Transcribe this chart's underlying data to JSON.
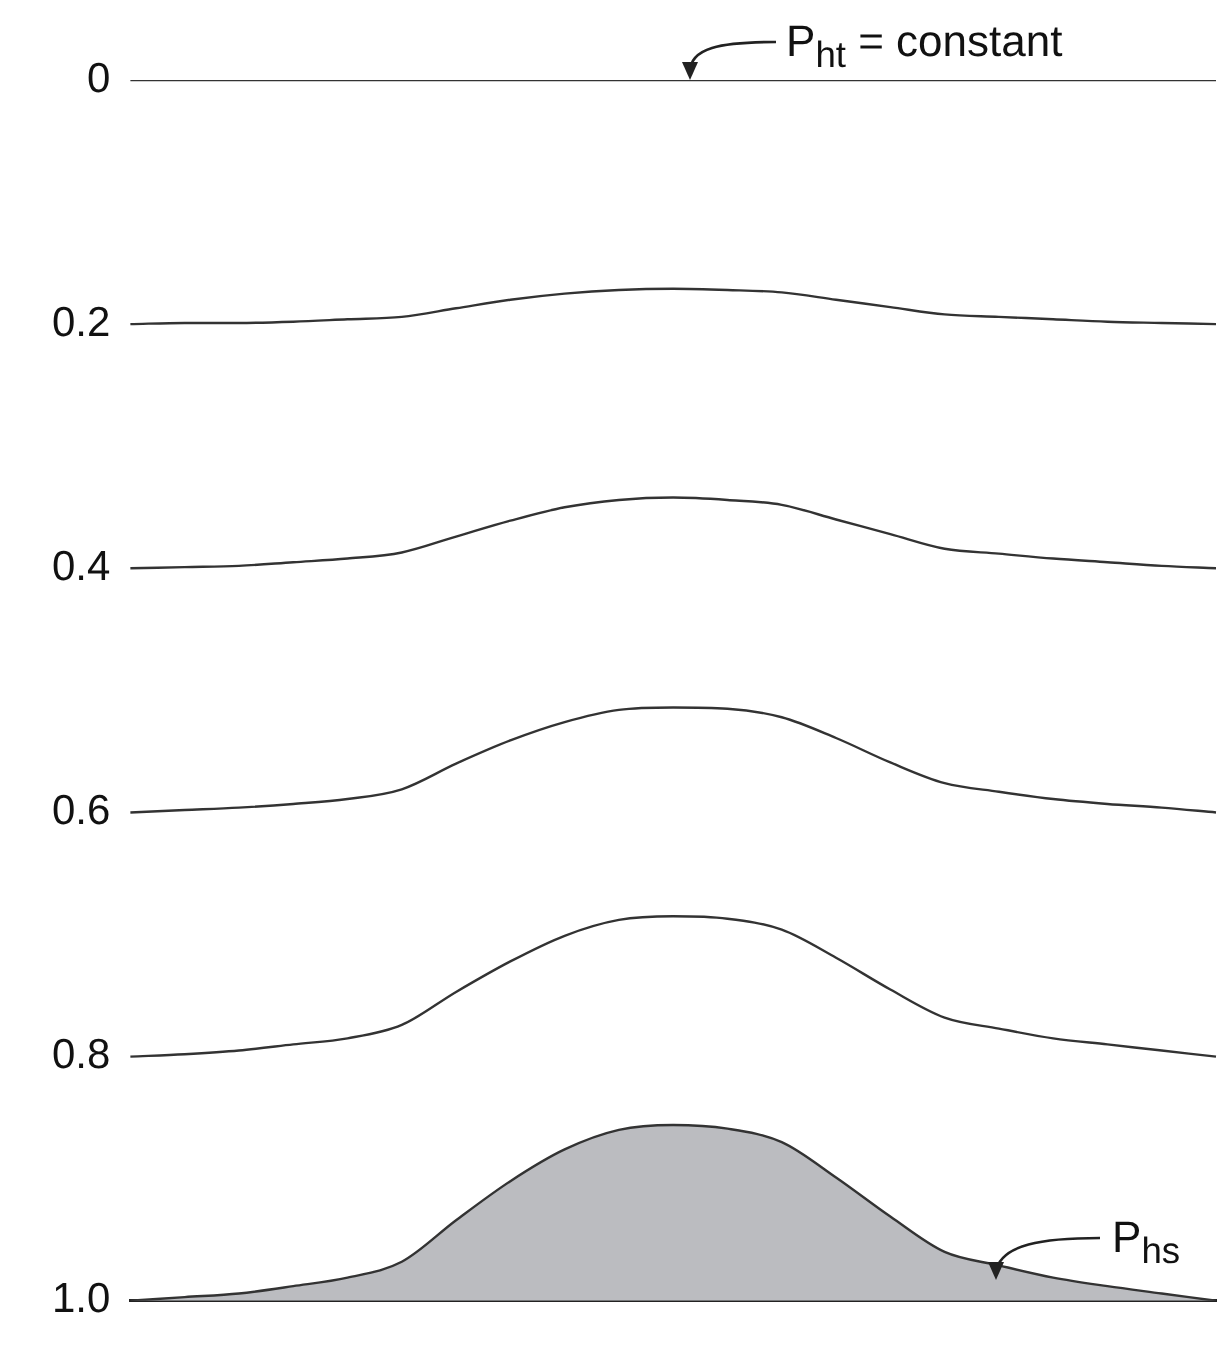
{
  "chart_data": {
    "type": "line",
    "categories": [
      null,
      null,
      null,
      null,
      null,
      null,
      null,
      null,
      null,
      null,
      null,
      null,
      null,
      null,
      null,
      null,
      null,
      null,
      null,
      null,
      null
    ],
    "ylim": [
      1,
      0
    ],
    "yticks": [
      0,
      0.2,
      0.4,
      0.6,
      0.8,
      {
        "value": 1,
        "label": "1.0"
      }
    ],
    "grid": false,
    "legend": false,
    "marker": "none",
    "tick_labels": "y",
    "annotations": [
      "P$_{ht}$ = constant",
      "P$_{hs}$"
    ],
    "series": [
      {
        "color": "#333333",
        "values": [
          0,
          0,
          0,
          0,
          0,
          0,
          0,
          0,
          0,
          0,
          0,
          0,
          0,
          0,
          0,
          0,
          0,
          0,
          0,
          0,
          0
        ]
      },
      {
        "color": "#333333",
        "values": [
          0.2,
          0.199,
          0.199,
          0.198,
          0.196,
          0.194,
          0.187,
          0.18,
          0.175,
          0.172,
          0.171,
          0.172,
          0.174,
          0.18,
          0.186,
          0.192,
          0.194,
          0.196,
          0.198,
          0.199,
          0.2
        ]
      },
      {
        "color": "#333333",
        "values": [
          0.4,
          0.399,
          0.398,
          0.395,
          0.392,
          0.387,
          0.374,
          0.361,
          0.35,
          0.344,
          0.342,
          0.344,
          0.348,
          0.36,
          0.372,
          0.384,
          0.388,
          0.392,
          0.395,
          0.398,
          0.4
        ]
      },
      {
        "color": "#333333",
        "values": [
          0.6,
          0.598,
          0.596,
          0.593,
          0.589,
          0.581,
          0.56,
          0.541,
          0.526,
          0.516,
          0.514,
          0.515,
          0.522,
          0.539,
          0.559,
          0.576,
          0.583,
          0.589,
          0.593,
          0.596,
          0.6
        ]
      },
      {
        "color": "#333333",
        "values": [
          0.8,
          0.798,
          0.795,
          0.79,
          0.785,
          0.774,
          0.747,
          0.722,
          0.701,
          0.688,
          0.685,
          0.687,
          0.696,
          0.719,
          0.745,
          0.768,
          0.777,
          0.785,
          0.79,
          0.795,
          0.8
        ]
      },
      {
        "type": "area",
        "color": "#bbbcc0",
        "values": [
          1,
          0.997,
          0.994,
          0.988,
          0.981,
          0.968,
          0.934,
          0.902,
          0.876,
          0.86,
          0.856,
          0.859,
          0.87,
          0.899,
          0.931,
          0.96,
          0.971,
          0.981,
          0.988,
          0.994,
          1
        ]
      }
    ]
  }
}
